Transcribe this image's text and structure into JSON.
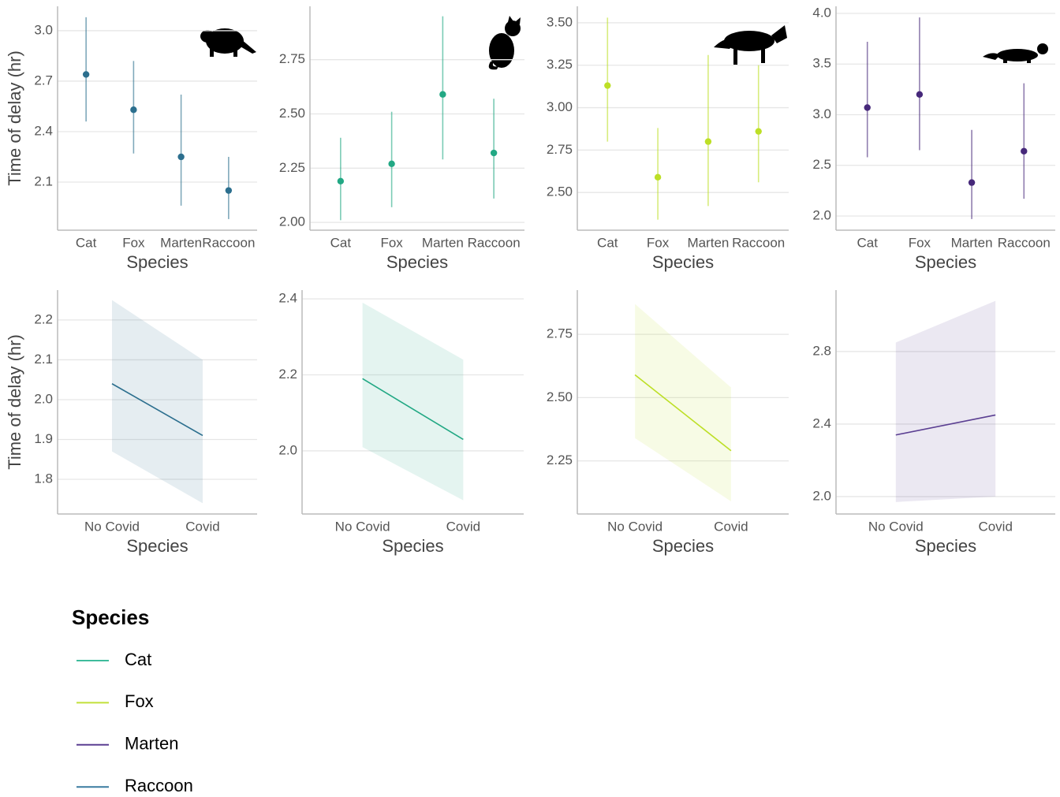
{
  "chart_data": [
    {
      "type": "pointrange",
      "ylabel": "Time of delay (hr)",
      "xlabel": "Species",
      "color": "#2c6f8e",
      "grid": true,
      "categories": [
        "Cat",
        "Fox",
        "Marten",
        "Raccoon"
      ],
      "values": [
        2.74,
        2.53,
        2.25,
        2.05
      ],
      "lower": [
        2.46,
        2.27,
        1.96,
        1.88
      ],
      "upper": [
        3.08,
        2.82,
        2.62,
        2.25
      ],
      "ylim": [
        1.814,
        3.145
      ],
      "yticks": [
        2.1,
        2.4,
        2.7,
        {
          "value": 3,
          "label": "3.0"
        }
      ]
    },
    {
      "type": "pointrange",
      "xlabel": "Species",
      "color": "#22a884",
      "grid": true,
      "categories": [
        "Cat",
        "Fox",
        "Marten",
        "Raccoon"
      ],
      "values": [
        2.19,
        2.27,
        2.59,
        2.32
      ],
      "lower": [
        2.01,
        2.07,
        2.29,
        2.11
      ],
      "upper": [
        2.39,
        2.51,
        2.95,
        2.57
      ],
      "ylim": [
        1.964,
        2.996
      ],
      "yticks": [
        {
          "value": 2,
          "label": "2.00"
        },
        2.25,
        {
          "value": 2.5,
          "label": "2.50"
        },
        2.75
      ]
    },
    {
      "type": "pointrange",
      "xlabel": "Species",
      "color": "#bddf26",
      "grid": true,
      "categories": [
        "Cat",
        "Fox",
        "Marten",
        "Raccoon"
      ],
      "values": [
        3.13,
        2.59,
        2.8,
        2.86
      ],
      "lower": [
        2.8,
        2.34,
        2.42,
        2.56
      ],
      "upper": [
        3.53,
        2.88,
        3.31,
        3.25
      ],
      "ylim": [
        2.278,
        3.597
      ],
      "yticks": [
        {
          "value": 2.5,
          "label": "2.50"
        },
        2.75,
        {
          "value": 3,
          "label": "3.00"
        },
        3.25,
        {
          "value": 3.5,
          "label": "3.50"
        }
      ]
    },
    {
      "type": "pointrange",
      "xlabel": "Species",
      "color": "#46287a",
      "grid": true,
      "categories": [
        "Cat",
        "Fox",
        "Marten",
        "Raccoon"
      ],
      "values": [
        3.07,
        3.2,
        2.33,
        2.64
      ],
      "lower": [
        2.58,
        2.65,
        1.97,
        2.17
      ],
      "upper": [
        3.72,
        3.96,
        2.85,
        3.31
      ],
      "ylim": [
        1.86,
        4.07
      ],
      "yticks": [
        {
          "value": 2,
          "label": "2.0"
        },
        2.5,
        {
          "value": 3,
          "label": "3.0"
        },
        3.5,
        {
          "value": 4,
          "label": "4.0"
        }
      ]
    },
    {
      "type": "ribbon",
      "ylabel": "Time of delay (hr)",
      "xlabel": "Species",
      "color": "#2c6f8e",
      "grid": true,
      "categories": [
        "No Covid",
        "Covid"
      ],
      "values": [
        2.04,
        1.91
      ],
      "lower": [
        1.87,
        1.74
      ],
      "upper": [
        2.25,
        2.1
      ],
      "ylim": [
        1.713,
        2.275
      ],
      "yticks": [
        1.8,
        1.9,
        {
          "value": 2,
          "label": "2.0"
        },
        2.1,
        2.2
      ]
    },
    {
      "type": "ribbon",
      "xlabel": "Species",
      "color": "#22a884",
      "grid": true,
      "categories": [
        "No Covid",
        "Covid"
      ],
      "values": [
        2.19,
        2.03
      ],
      "lower": [
        2.01,
        1.87
      ],
      "upper": [
        2.39,
        2.24
      ],
      "ylim": [
        1.834,
        2.423
      ],
      "yticks": [
        {
          "value": 2,
          "label": "2.0"
        },
        2.2,
        2.4
      ]
    },
    {
      "type": "ribbon",
      "xlabel": "Species",
      "color": "#bddf26",
      "grid": true,
      "categories": [
        "No Covid",
        "Covid"
      ],
      "values": [
        2.59,
        2.29
      ],
      "lower": [
        2.34,
        2.09
      ],
      "upper": [
        2.87,
        2.54
      ],
      "ylim": [
        2.04,
        2.925
      ],
      "yticks": [
        2.25,
        {
          "value": 2.5,
          "label": "2.50"
        },
        2.75
      ]
    },
    {
      "type": "ribbon",
      "xlabel": "Species",
      "color": "#5b3f92",
      "grid": true,
      "categories": [
        "No Covid",
        "Covid"
      ],
      "values": [
        2.34,
        2.45
      ],
      "lower": [
        1.97,
        2.0
      ],
      "upper": [
        2.85,
        3.08
      ],
      "ylim": [
        1.904,
        3.139
      ],
      "yticks": [
        {
          "value": 2,
          "label": "2.0"
        },
        2.4,
        2.8
      ]
    }
  ],
  "legend": {
    "title": "Species",
    "entries": [
      {
        "name": "Cat",
        "color": "#3fbc9c"
      },
      {
        "name": "Fox",
        "color": "#c2e03a"
      },
      {
        "name": "Marten",
        "color": "#5b3f92"
      },
      {
        "name": "Raccoon",
        "color": "#3a7ca0"
      }
    ]
  }
}
